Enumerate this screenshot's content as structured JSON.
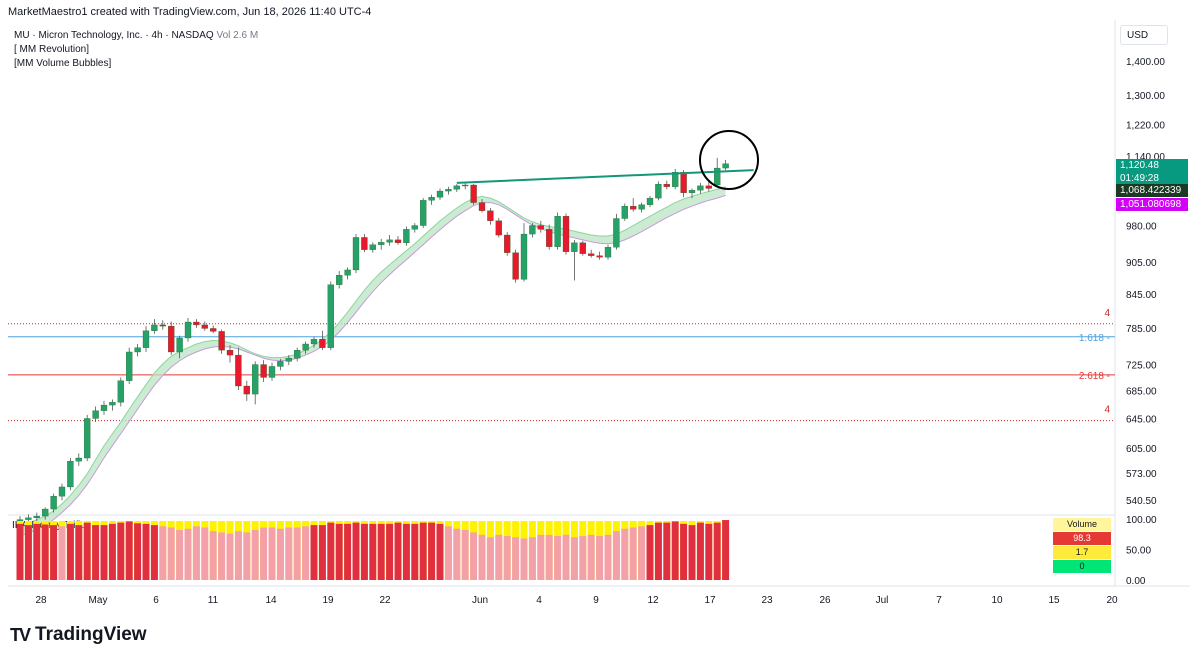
{
  "header": {
    "text": "MarketMaestro1 created with TradingView.com, Jun 18, 2026 11:40 UTC-4"
  },
  "legend": {
    "symbol_line": "MU · Micron Technology, Inc. · 4h · NASDAQ",
    "volume": "Vol 2.6 M",
    "indicator1": "[ MM Revolution]",
    "indicator2": "[MM Volume Bubbles]"
  },
  "currency": "USD",
  "price_labels": {
    "last_price": "1,120.48",
    "countdown": "01:49:28",
    "line_a": "1,068.422339",
    "line_b": "1,051.080698"
  },
  "levels": [
    {
      "label": "4",
      "price": 792,
      "style": "dotted",
      "color": "#c62828"
    },
    {
      "label": "1.618",
      "price": 770,
      "style": "solid",
      "color": "#4fa3e0"
    },
    {
      "label": "2.618",
      "price": 709,
      "style": "solid",
      "color": "#e53935"
    },
    {
      "label": "4",
      "price": 642,
      "style": "dotted",
      "color": "#c62828"
    }
  ],
  "oscillator": {
    "title": "IBA-Money Triflux",
    "axis_labels": [
      "100.00",
      "50.00",
      "0.00"
    ],
    "table": {
      "header": "Volume",
      "rows": [
        "98.3",
        "1.7",
        "0"
      ]
    }
  },
  "logo": {
    "text": "TradingView"
  },
  "chart_data": {
    "type": "candlestick",
    "y_axis_labels": [
      "1,400.00",
      "1,300.00",
      "1,220.00",
      "1,140.00",
      "980.00",
      "905.00",
      "845.00",
      "785.00",
      "725.00",
      "685.00",
      "645.00",
      "605.00",
      "573.00",
      "540.50"
    ],
    "y_scale": "log",
    "x_tick_labels": [
      "28",
      "May",
      "6",
      "11",
      "14",
      "19",
      "22",
      "Jun",
      "4",
      "9",
      "12",
      "17",
      "23",
      "26",
      "Jul",
      "7",
      "10",
      "15",
      "20"
    ],
    "candles": [
      {
        "o": 515,
        "h": 522,
        "l": 512,
        "c": 518
      },
      {
        "o": 518,
        "h": 524,
        "l": 514,
        "c": 520
      },
      {
        "o": 520,
        "h": 526,
        "l": 516,
        "c": 522
      },
      {
        "o": 522,
        "h": 532,
        "l": 518,
        "c": 530
      },
      {
        "o": 530,
        "h": 548,
        "l": 526,
        "c": 545
      },
      {
        "o": 545,
        "h": 560,
        "l": 540,
        "c": 556
      },
      {
        "o": 556,
        "h": 592,
        "l": 552,
        "c": 588
      },
      {
        "o": 588,
        "h": 598,
        "l": 582,
        "c": 592
      },
      {
        "o": 592,
        "h": 650,
        "l": 588,
        "c": 645
      },
      {
        "o": 645,
        "h": 662,
        "l": 640,
        "c": 656
      },
      {
        "o": 656,
        "h": 670,
        "l": 650,
        "c": 664
      },
      {
        "o": 664,
        "h": 672,
        "l": 656,
        "c": 668
      },
      {
        "o": 668,
        "h": 705,
        "l": 662,
        "c": 700
      },
      {
        "o": 700,
        "h": 752,
        "l": 695,
        "c": 745
      },
      {
        "o": 745,
        "h": 758,
        "l": 738,
        "c": 752
      },
      {
        "o": 752,
        "h": 788,
        "l": 745,
        "c": 780
      },
      {
        "o": 780,
        "h": 800,
        "l": 775,
        "c": 790
      },
      {
        "o": 790,
        "h": 798,
        "l": 782,
        "c": 788
      },
      {
        "o": 788,
        "h": 796,
        "l": 740,
        "c": 745
      },
      {
        "o": 745,
        "h": 772,
        "l": 735,
        "c": 768
      },
      {
        "o": 768,
        "h": 802,
        "l": 762,
        "c": 795
      },
      {
        "o": 795,
        "h": 800,
        "l": 785,
        "c": 790
      },
      {
        "o": 790,
        "h": 796,
        "l": 780,
        "c": 784
      },
      {
        "o": 784,
        "h": 789,
        "l": 776,
        "c": 779
      },
      {
        "o": 779,
        "h": 782,
        "l": 742,
        "c": 748
      },
      {
        "o": 748,
        "h": 756,
        "l": 728,
        "c": 740
      },
      {
        "o": 740,
        "h": 752,
        "l": 686,
        "c": 692
      },
      {
        "o": 692,
        "h": 700,
        "l": 670,
        "c": 680
      },
      {
        "o": 680,
        "h": 730,
        "l": 665,
        "c": 725
      },
      {
        "o": 725,
        "h": 732,
        "l": 698,
        "c": 705
      },
      {
        "o": 705,
        "h": 728,
        "l": 700,
        "c": 722
      },
      {
        "o": 722,
        "h": 734,
        "l": 716,
        "c": 730
      },
      {
        "o": 730,
        "h": 740,
        "l": 724,
        "c": 735
      },
      {
        "o": 735,
        "h": 752,
        "l": 730,
        "c": 748
      },
      {
        "o": 748,
        "h": 762,
        "l": 742,
        "c": 758
      },
      {
        "o": 758,
        "h": 770,
        "l": 752,
        "c": 766
      },
      {
        "o": 766,
        "h": 780,
        "l": 748,
        "c": 752
      },
      {
        "o": 752,
        "h": 868,
        "l": 748,
        "c": 862
      },
      {
        "o": 862,
        "h": 888,
        "l": 855,
        "c": 880
      },
      {
        "o": 880,
        "h": 895,
        "l": 872,
        "c": 890
      },
      {
        "o": 890,
        "h": 962,
        "l": 884,
        "c": 955
      },
      {
        "o": 955,
        "h": 962,
        "l": 925,
        "c": 930
      },
      {
        "o": 930,
        "h": 945,
        "l": 924,
        "c": 940
      },
      {
        "o": 940,
        "h": 952,
        "l": 930,
        "c": 945
      },
      {
        "o": 945,
        "h": 960,
        "l": 938,
        "c": 950
      },
      {
        "o": 950,
        "h": 958,
        "l": 940,
        "c": 944
      },
      {
        "o": 944,
        "h": 978,
        "l": 938,
        "c": 972
      },
      {
        "o": 972,
        "h": 985,
        "l": 965,
        "c": 980
      },
      {
        "o": 980,
        "h": 1040,
        "l": 975,
        "c": 1035
      },
      {
        "o": 1035,
        "h": 1048,
        "l": 1025,
        "c": 1042
      },
      {
        "o": 1042,
        "h": 1062,
        "l": 1036,
        "c": 1056
      },
      {
        "o": 1056,
        "h": 1066,
        "l": 1048,
        "c": 1060
      },
      {
        "o": 1060,
        "h": 1072,
        "l": 1054,
        "c": 1068
      },
      {
        "o": 1068,
        "h": 1074,
        "l": 1060,
        "c": 1070
      },
      {
        "o": 1070,
        "h": 1072,
        "l": 1025,
        "c": 1030
      },
      {
        "o": 1030,
        "h": 1038,
        "l": 1008,
        "c": 1012
      },
      {
        "o": 1012,
        "h": 1018,
        "l": 982,
        "c": 990
      },
      {
        "o": 990,
        "h": 996,
        "l": 955,
        "c": 960
      },
      {
        "o": 960,
        "h": 966,
        "l": 918,
        "c": 924
      },
      {
        "o": 924,
        "h": 930,
        "l": 866,
        "c": 872
      },
      {
        "o": 872,
        "h": 985,
        "l": 868,
        "c": 962
      },
      {
        "o": 962,
        "h": 985,
        "l": 955,
        "c": 980
      },
      {
        "o": 980,
        "h": 990,
        "l": 965,
        "c": 972
      },
      {
        "o": 972,
        "h": 982,
        "l": 930,
        "c": 936
      },
      {
        "o": 936,
        "h": 1008,
        "l": 930,
        "c": 1000
      },
      {
        "o": 1000,
        "h": 1006,
        "l": 920,
        "c": 926
      },
      {
        "o": 926,
        "h": 950,
        "l": 870,
        "c": 944
      },
      {
        "o": 944,
        "h": 948,
        "l": 918,
        "c": 922
      },
      {
        "o": 922,
        "h": 930,
        "l": 914,
        "c": 918
      },
      {
        "o": 918,
        "h": 926,
        "l": 910,
        "c": 915
      },
      {
        "o": 915,
        "h": 940,
        "l": 910,
        "c": 935
      },
      {
        "o": 935,
        "h": 1005,
        "l": 930,
        "c": 995
      },
      {
        "o": 995,
        "h": 1028,
        "l": 990,
        "c": 1022
      },
      {
        "o": 1022,
        "h": 1040,
        "l": 1010,
        "c": 1015
      },
      {
        "o": 1015,
        "h": 1030,
        "l": 1008,
        "c": 1025
      },
      {
        "o": 1025,
        "h": 1045,
        "l": 1020,
        "c": 1040
      },
      {
        "o": 1040,
        "h": 1078,
        "l": 1035,
        "c": 1072
      },
      {
        "o": 1072,
        "h": 1080,
        "l": 1060,
        "c": 1066
      },
      {
        "o": 1066,
        "h": 1108,
        "l": 1060,
        "c": 1100
      },
      {
        "o": 1100,
        "h": 1105,
        "l": 1042,
        "c": 1052
      },
      {
        "o": 1052,
        "h": 1062,
        "l": 1040,
        "c": 1058
      },
      {
        "o": 1058,
        "h": 1075,
        "l": 1050,
        "c": 1068
      },
      {
        "o": 1068,
        "h": 1080,
        "l": 1055,
        "c": 1062
      },
      {
        "o": 1070,
        "h": 1135,
        "l": 1065,
        "c": 1110
      },
      {
        "o": 1110,
        "h": 1130,
        "l": 1105,
        "c": 1120.48
      }
    ],
    "ma_fast": [
      510,
      514,
      518,
      522,
      528,
      536,
      546,
      558,
      572,
      590,
      608,
      624,
      640,
      658,
      676,
      694,
      712,
      726,
      738,
      746,
      752,
      758,
      762,
      764,
      763,
      760,
      755,
      748,
      742,
      738,
      736,
      736,
      738,
      742,
      748,
      756,
      766,
      778,
      794,
      812,
      832,
      852,
      870,
      886,
      900,
      914,
      928,
      942,
      958,
      974,
      990,
      1004,
      1018,
      1030,
      1040,
      1044,
      1040,
      1032,
      1020,
      1008,
      996,
      988,
      982,
      978,
      975,
      972,
      968,
      964,
      960,
      958,
      958,
      962,
      970,
      980,
      990,
      1000,
      1010,
      1020,
      1030,
      1038,
      1044,
      1050,
      1055,
      1060,
      1066
    ],
    "ma_slow": [
      500,
      503,
      507,
      512,
      518,
      526,
      535,
      546,
      559,
      575,
      592,
      608,
      624,
      641,
      658,
      676,
      693,
      708,
      721,
      731,
      739,
      745,
      750,
      753,
      754,
      753,
      750,
      745,
      740,
      735,
      732,
      731,
      732,
      735,
      740,
      746,
      754,
      764,
      778,
      794,
      812,
      831,
      849,
      866,
      881,
      896,
      910,
      925,
      940,
      956,
      971,
      986,
      1000,
      1012,
      1023,
      1030,
      1030,
      1025,
      1015,
      1003,
      991,
      981,
      973,
      967,
      962,
      958,
      954,
      950,
      946,
      943,
      942,
      944,
      950,
      958,
      967,
      977,
      987,
      997,
      1006,
      1015,
      1022,
      1029,
      1035,
      1040,
      1046
    ],
    "trendline": {
      "from_index": 52,
      "from_price": 1075,
      "to_index": 84,
      "to_price": 1105
    },
    "volume_pressure": [
      92,
      90,
      92,
      91,
      90,
      88,
      92,
      90,
      94,
      90,
      90,
      92,
      94,
      96,
      93,
      92,
      90,
      88,
      86,
      82,
      84,
      88,
      86,
      80,
      78,
      76,
      80,
      78,
      82,
      86,
      86,
      84,
      86,
      86,
      88,
      90,
      90,
      94,
      92,
      92,
      94,
      92,
      92,
      92,
      92,
      94,
      92,
      92,
      94,
      94,
      92,
      88,
      84,
      82,
      78,
      74,
      70,
      74,
      72,
      70,
      68,
      70,
      74,
      74,
      72,
      74,
      70,
      72,
      74,
      72,
      74,
      80,
      84,
      86,
      88,
      90,
      94,
      94,
      96,
      92,
      90,
      94,
      92,
      94,
      98.3
    ]
  }
}
